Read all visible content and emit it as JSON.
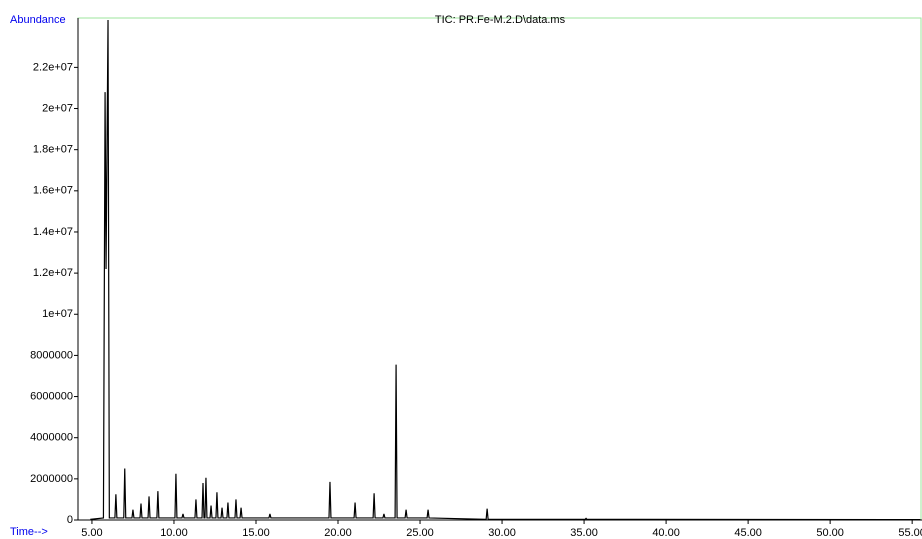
{
  "chart_data": {
    "type": "line",
    "title": "TIC: PR.Fe-M.2.D\\data.ms",
    "y_label": "Abundance",
    "x_label": "Time-->",
    "color": "#000000",
    "x": [
      4.9,
      5.7,
      5.8,
      5.86,
      5.98,
      6.06,
      6.4,
      6.46,
      6.52,
      6.94,
      7.0,
      7.06,
      7.44,
      7.5,
      7.56,
      7.93,
      7.99,
      8.05,
      8.42,
      8.48,
      8.54,
      8.96,
      9.02,
      9.08,
      10.06,
      10.12,
      10.18,
      10.49,
      10.55,
      10.61,
      11.28,
      11.34,
      11.4,
      11.71,
      11.77,
      11.83,
      11.89,
      11.95,
      12.01,
      12.2,
      12.26,
      12.32,
      12.56,
      12.62,
      12.68,
      12.87,
      12.93,
      12.99,
      13.23,
      13.29,
      13.35,
      13.72,
      13.78,
      13.84,
      14.03,
      14.09,
      14.15,
      15.79,
      15.85,
      15.91,
      19.45,
      19.51,
      19.57,
      20.98,
      21.04,
      21.1,
      22.14,
      22.2,
      22.26,
      22.74,
      22.8,
      22.86,
      23.48,
      23.54,
      23.6,
      24.09,
      24.15,
      24.21,
      25.43,
      25.49,
      25.55,
      29.03,
      29.09,
      29.15,
      35.06,
      35.12,
      35.18,
      55.5
    ],
    "values": [
      30000,
      100000,
      20800000,
      12200000,
      24300000,
      100000,
      100000,
      1250000,
      100000,
      100000,
      2500000,
      100000,
      100000,
      500000,
      100000,
      100000,
      800000,
      100000,
      100000,
      1150000,
      100000,
      100000,
      1400000,
      100000,
      100000,
      2250000,
      100000,
      100000,
      300000,
      100000,
      100000,
      1000000,
      100000,
      100000,
      1800000,
      100000,
      100000,
      2050000,
      100000,
      100000,
      700000,
      100000,
      100000,
      1350000,
      100000,
      100000,
      600000,
      100000,
      100000,
      850000,
      100000,
      100000,
      1000000,
      100000,
      100000,
      600000,
      100000,
      100000,
      300000,
      100000,
      100000,
      1850000,
      100000,
      100000,
      850000,
      100000,
      100000,
      1300000,
      100000,
      100000,
      300000,
      100000,
      100000,
      7550000,
      100000,
      100000,
      500000,
      100000,
      100000,
      500000,
      100000,
      30000,
      550000,
      30000,
      30000,
      80000,
      30000,
      20000
    ],
    "xlim": [
      4.15,
      55.6
    ],
    "ylim": [
      0,
      24400000
    ],
    "xticks": [
      {
        "value": 5,
        "label": "5.00"
      },
      {
        "value": 10,
        "label": "10.00"
      },
      {
        "value": 15,
        "label": "15.00"
      },
      {
        "value": 20,
        "label": "20.00"
      },
      {
        "value": 25,
        "label": "25.00"
      },
      {
        "value": 30,
        "label": "30.00"
      },
      {
        "value": 35,
        "label": "35.00"
      },
      {
        "value": 40,
        "label": "40.00"
      },
      {
        "value": 45,
        "label": "45.00"
      },
      {
        "value": 50,
        "label": "50.00"
      },
      {
        "value": 55,
        "label": "55.00"
      }
    ],
    "yticks": [
      0,
      2000000,
      4000000,
      6000000,
      8000000,
      {
        "value": 10000000,
        "label": "1e+07"
      },
      {
        "value": 12000000,
        "label": "1.2e+07"
      },
      {
        "value": 14000000,
        "label": "1.4e+07"
      },
      {
        "value": 16000000,
        "label": "1.6e+07"
      },
      {
        "value": 18000000,
        "label": "1.8e+07"
      },
      {
        "value": 20000000,
        "label": "2e+07"
      },
      {
        "value": 22000000,
        "label": "2.2e+07"
      }
    ]
  }
}
